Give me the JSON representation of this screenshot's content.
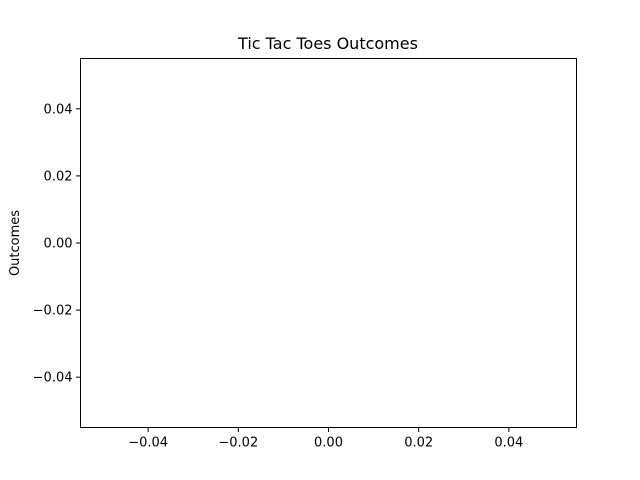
{
  "chart_data": {
    "type": "scatter",
    "title": "Tic Tac Toes Outcomes",
    "xlabel": "",
    "ylabel": "Outcomes",
    "xlim": [
      -0.055,
      0.055
    ],
    "ylim": [
      -0.055,
      0.055
    ],
    "xticks": [
      -0.04,
      -0.02,
      0.0,
      0.02,
      0.04
    ],
    "yticks": [
      -0.04,
      -0.02,
      0.0,
      0.02,
      0.04
    ],
    "xtick_labels": [
      "−0.04",
      "−0.02",
      "0.00",
      "0.02",
      "0.04"
    ],
    "ytick_labels": [
      "−0.04",
      "−0.02",
      "0.00",
      "0.02",
      "0.04"
    ],
    "grid": false,
    "series": []
  }
}
